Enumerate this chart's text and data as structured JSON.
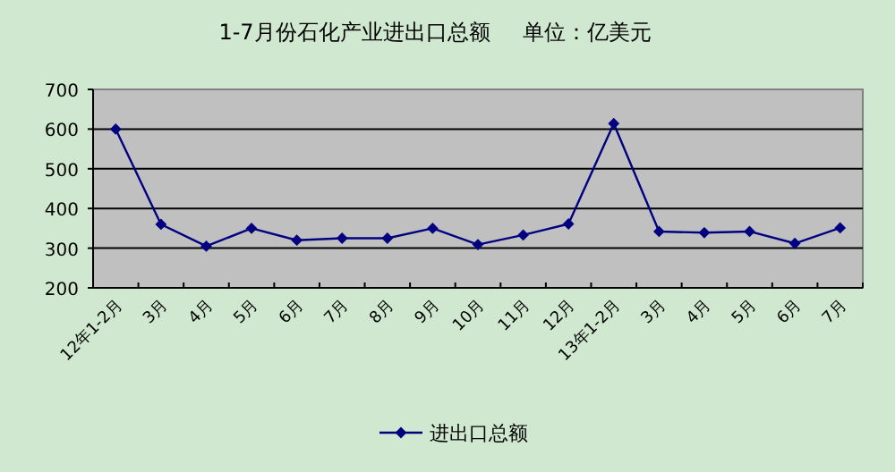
{
  "chart_data": {
    "type": "line",
    "title": "1-7月份石化产业进出口总额",
    "subtitle": "单位：亿美元",
    "categories": [
      "12年1-2月",
      "3月",
      "4月",
      "5月",
      "6月",
      "7月",
      "8月",
      "9月",
      "10月",
      "11月",
      "12月",
      "13年1-2月",
      "3月",
      "4月",
      "5月",
      "6月",
      "7月"
    ],
    "series": [
      {
        "name": "进出口总额",
        "color": "#000080",
        "values": [
          600,
          360,
          305,
          350,
          320,
          325,
          325,
          350,
          309,
          333,
          361,
          614,
          342,
          339,
          342,
          312,
          351
        ]
      }
    ],
    "ylim": [
      200,
      700
    ],
    "yticks": [
      200,
      300,
      400,
      500,
      600,
      700
    ],
    "grid": "y",
    "legend": "bottom",
    "marker": "diamond",
    "line_style": "solid"
  }
}
